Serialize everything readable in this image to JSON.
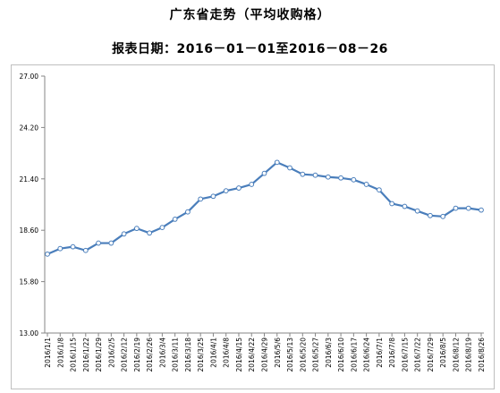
{
  "chart_data": {
    "type": "line",
    "title": "广东省走势（平均收购格）",
    "subtitle": "报表日期：2016－01－01至2016－08－26",
    "xlabel": "",
    "ylabel": "",
    "ylim": [
      13.0,
      27.0
    ],
    "yticks": [
      "13.00",
      "15.80",
      "18.60",
      "21.40",
      "24.20",
      "27.00"
    ],
    "grid": false,
    "legend": "none",
    "colors": {
      "line": "#4a7ebb",
      "marker_fill": "#ffffff",
      "axis": "#868686"
    },
    "categories": [
      "2016/1/1",
      "2016/1/8",
      "2016/1/15",
      "2016/1/22",
      "2016/1/29",
      "2016/2/5",
      "2016/2/12",
      "2016/2/19",
      "2016/2/26",
      "2016/3/4",
      "2016/3/11",
      "2016/3/18",
      "2016/3/25",
      "2016/4/1",
      "2016/4/8",
      "2016/4/15",
      "2016/4/22",
      "2016/4/29",
      "2016/5/6",
      "2016/5/13",
      "2016/5/20",
      "2016/5/27",
      "2016/6/3",
      "2016/6/10",
      "2016/6/17",
      "2016/6/24",
      "2016/7/1",
      "2016/7/8",
      "2016/7/15",
      "2016/7/22",
      "2016/7/29",
      "2016/8/5",
      "2016/8/12",
      "2016/8/19",
      "2016/8/26"
    ],
    "series": [
      {
        "values": [
          17.3,
          17.6,
          17.7,
          17.5,
          17.9,
          17.9,
          18.4,
          18.7,
          18.45,
          18.75,
          19.2,
          19.6,
          20.3,
          20.45,
          20.75,
          20.9,
          21.1,
          21.7,
          22.3,
          22.0,
          21.65,
          21.6,
          21.5,
          21.45,
          21.35,
          21.1,
          20.8,
          20.05,
          19.9,
          19.65,
          19.4,
          19.35,
          19.8,
          19.8,
          19.7
        ]
      }
    ]
  }
}
